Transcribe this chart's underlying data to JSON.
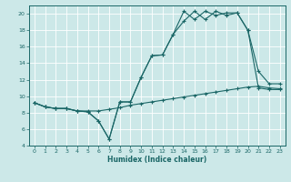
{
  "xlabel": "Humidex (Indice chaleur)",
  "bg_color": "#cce8e8",
  "grid_color": "#ffffff",
  "line_color": "#1a6666",
  "xlim": [
    -0.5,
    23.5
  ],
  "ylim": [
    4,
    21
  ],
  "yticks": [
    4,
    6,
    8,
    10,
    12,
    14,
    16,
    18,
    20
  ],
  "xticks": [
    0,
    1,
    2,
    3,
    4,
    5,
    6,
    7,
    8,
    9,
    10,
    11,
    12,
    13,
    14,
    15,
    16,
    17,
    18,
    19,
    20,
    21,
    22,
    23
  ],
  "line1_x": [
    0,
    1,
    2,
    3,
    4,
    5,
    6,
    7,
    8,
    9,
    10,
    11,
    12,
    13,
    14,
    15,
    16,
    17,
    18,
    19,
    20,
    21,
    22,
    23
  ],
  "line1_y": [
    9.2,
    8.7,
    8.5,
    8.5,
    8.2,
    8.1,
    7.0,
    4.8,
    9.3,
    9.3,
    12.3,
    14.9,
    15.0,
    17.5,
    19.1,
    20.3,
    19.3,
    20.3,
    19.8,
    20.1,
    18.0,
    13.0,
    11.5,
    11.5
  ],
  "line2_x": [
    0,
    1,
    2,
    3,
    4,
    5,
    6,
    7,
    8,
    9,
    10,
    11,
    12,
    13,
    14,
    15,
    16,
    17,
    18,
    19,
    20,
    21,
    22,
    23
  ],
  "line2_y": [
    9.2,
    8.7,
    8.5,
    8.5,
    8.2,
    8.1,
    7.0,
    4.8,
    9.3,
    9.3,
    12.3,
    14.9,
    15.0,
    17.5,
    20.3,
    19.3,
    20.3,
    19.8,
    20.1,
    20.1,
    18.0,
    11.0,
    10.8,
    10.8
  ],
  "line3_x": [
    0,
    1,
    2,
    3,
    4,
    5,
    6,
    7,
    8,
    9,
    10,
    11,
    12,
    13,
    14,
    15,
    16,
    17,
    18,
    19,
    20,
    21,
    22,
    23
  ],
  "line3_y": [
    9.2,
    8.7,
    8.5,
    8.5,
    8.2,
    8.2,
    8.2,
    8.4,
    8.6,
    8.9,
    9.1,
    9.3,
    9.5,
    9.7,
    9.9,
    10.1,
    10.3,
    10.5,
    10.7,
    10.9,
    11.1,
    11.2,
    11.0,
    10.9
  ]
}
